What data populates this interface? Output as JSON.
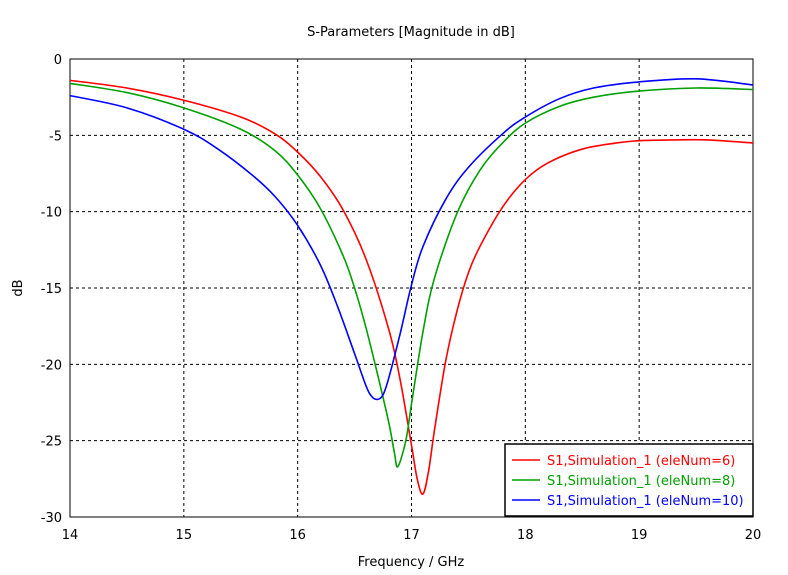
{
  "chart_data": {
    "type": "line",
    "title": "S-Parameters [Magnitude in dB]",
    "xlabel": "Frequency / GHz",
    "ylabel": "dB",
    "xlim": [
      14,
      20
    ],
    "ylim": [
      -30,
      0
    ],
    "xticks": [
      14,
      15,
      16,
      17,
      18,
      19,
      20
    ],
    "yticks": [
      0,
      -5,
      -10,
      -15,
      -20,
      -25,
      -30
    ],
    "grid": true,
    "legend_position": "bottom-right",
    "series": [
      {
        "name": "S1,Simulation_1 (eleNum=6)",
        "color": "#ff0000",
        "x": [
          14,
          14.5,
          15,
          15.5,
          15.8,
          16,
          16.2,
          16.4,
          16.6,
          16.8,
          16.9,
          17,
          17.05,
          17.1,
          17.15,
          17.2,
          17.3,
          17.4,
          17.5,
          17.6,
          17.8,
          18,
          18.2,
          18.5,
          18.8,
          19,
          19.3,
          19.6,
          20
        ],
        "y": [
          -1.4,
          -1.9,
          -2.7,
          -3.8,
          -4.9,
          -6.1,
          -7.7,
          -9.9,
          -13.1,
          -17.7,
          -21.0,
          -25.3,
          -27.5,
          -28.5,
          -27.0,
          -24.4,
          -19.8,
          -16.5,
          -14.0,
          -12.3,
          -9.7,
          -7.9,
          -6.8,
          -5.9,
          -5.5,
          -5.35,
          -5.3,
          -5.3,
          -5.5
        ]
      },
      {
        "name": "S1,Simulation_1 (eleNum=8)",
        "color": "#00a000",
        "x": [
          14,
          14.5,
          15,
          15.5,
          15.8,
          16,
          16.2,
          16.4,
          16.5,
          16.6,
          16.7,
          16.8,
          16.85,
          16.88,
          16.95,
          17,
          17.1,
          17.2,
          17.4,
          17.6,
          17.8,
          18,
          18.3,
          18.6,
          19,
          19.5,
          20
        ],
        "y": [
          -1.6,
          -2.2,
          -3.2,
          -4.6,
          -6.0,
          -7.6,
          -9.8,
          -12.9,
          -15.0,
          -17.6,
          -20.6,
          -23.8,
          -25.8,
          -26.7,
          -25.0,
          -22.6,
          -17.9,
          -14.4,
          -10.1,
          -7.3,
          -5.5,
          -4.2,
          -3.1,
          -2.5,
          -2.1,
          -1.9,
          -2.0
        ]
      },
      {
        "name": "S1,Simulation_1 (eleNum=10)",
        "color": "#0000ff",
        "x": [
          14,
          14.5,
          15,
          15.3,
          15.6,
          15.8,
          16,
          16.2,
          16.35,
          16.5,
          16.6,
          16.65,
          16.7,
          16.75,
          16.8,
          16.9,
          17,
          17.1,
          17.3,
          17.5,
          17.8,
          18,
          18.3,
          18.6,
          19,
          19.5,
          20
        ],
        "y": [
          -2.4,
          -3.2,
          -4.6,
          -5.9,
          -7.6,
          -9.0,
          -10.9,
          -13.5,
          -16.2,
          -19.3,
          -21.4,
          -22.1,
          -22.3,
          -22.0,
          -20.9,
          -18.0,
          -14.8,
          -12.3,
          -9.2,
          -7.1,
          -4.9,
          -3.8,
          -2.6,
          -1.9,
          -1.5,
          -1.3,
          -1.7
        ]
      }
    ]
  }
}
